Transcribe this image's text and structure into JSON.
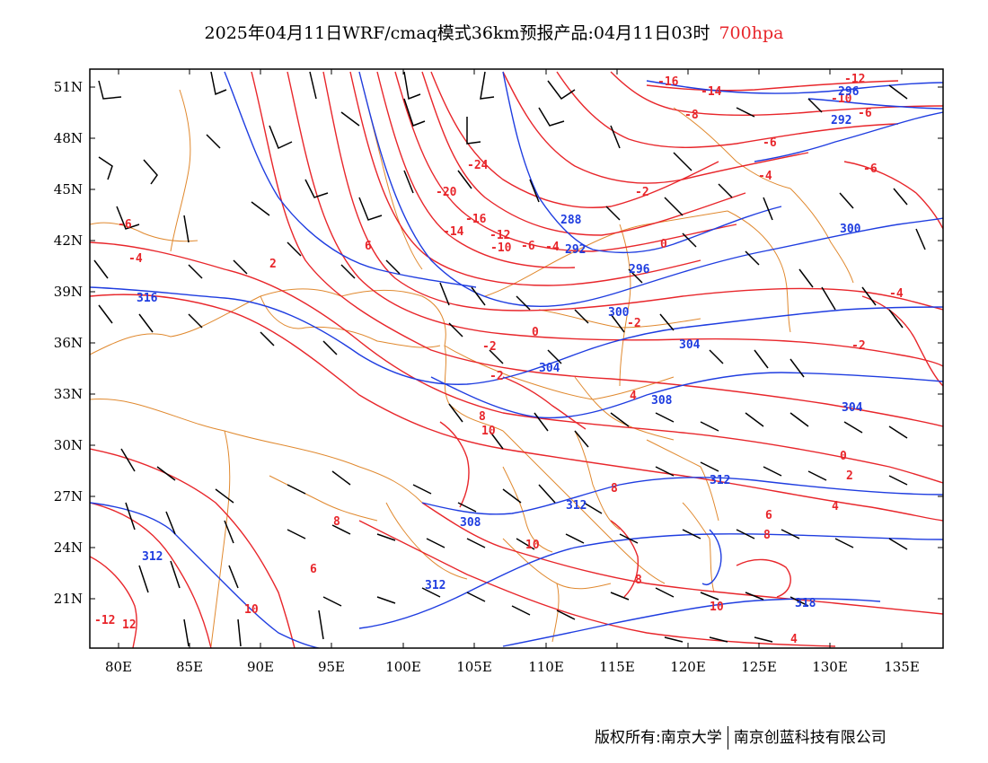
{
  "title": {
    "main": "2025年04月11日WRF/cmaq模式36km预报产品:04月11日03时",
    "level": "700hpa"
  },
  "colors": {
    "temperature": "#e8262b",
    "height": "#1f3de0",
    "border": "#e0892f",
    "wind": "#000000",
    "frame": "#000000"
  },
  "map": {
    "lon_range": [
      78,
      138
    ],
    "lat_range": [
      17.5,
      52.5
    ],
    "lat_ticks": [
      "51N",
      "48N",
      "45N",
      "42N",
      "39N",
      "36N",
      "33N",
      "30N",
      "27N",
      "24N",
      "21N"
    ],
    "lon_ticks": [
      "80E",
      "85E",
      "90E",
      "95E",
      "100E",
      "105E",
      "110E",
      "115E",
      "120E",
      "125E",
      "130E",
      "135E"
    ],
    "temperature_labels": [
      "-16",
      "-14",
      "-12",
      "-10",
      "-6",
      "-8",
      "-24",
      "-20",
      "-16",
      "-14",
      "-12",
      "-10",
      "-6",
      "-4",
      "-2",
      "-6",
      "-4",
      "-6",
      "-2",
      "0",
      "-2",
      "-2",
      "-4",
      "-2",
      "0",
      "2",
      "4",
      "6",
      "8",
      "10",
      "8",
      "8",
      "6",
      "8",
      "10",
      "8",
      "6",
      "4",
      "10",
      "12",
      "-12",
      "10",
      "0",
      "2",
      "-6",
      "-4",
      "4"
    ],
    "height_labels": [
      "288",
      "292",
      "296",
      "300",
      "304",
      "304",
      "308",
      "312",
      "312",
      "308",
      "312",
      "312",
      "296",
      "292",
      "304",
      "300",
      "316",
      "318"
    ]
  },
  "footer": {
    "left": "版权所有:南京大学",
    "right": "南京创蓝科技有限公司"
  }
}
